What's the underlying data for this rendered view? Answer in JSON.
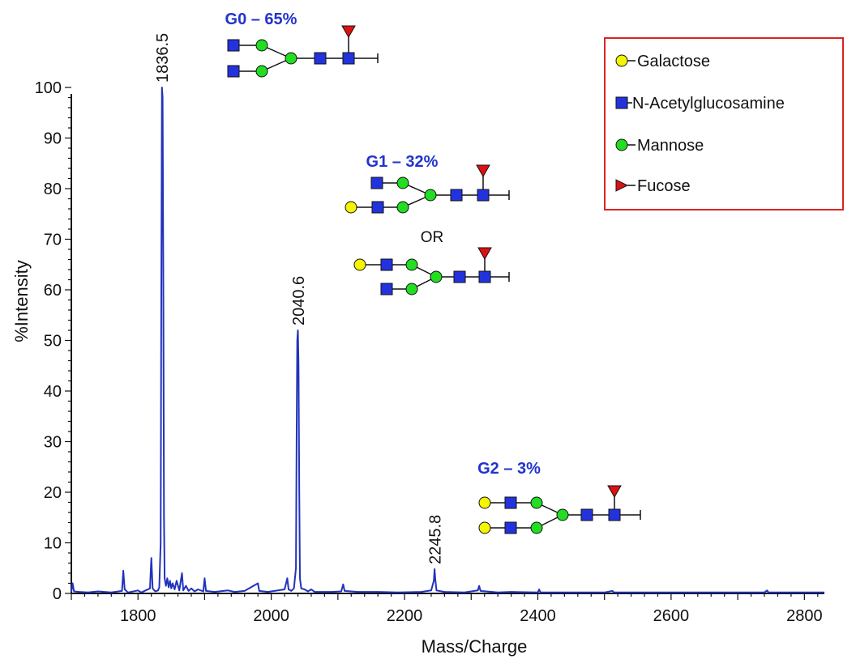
{
  "chart_data": {
    "type": "line",
    "xlabel": "Mass/Charge",
    "ylabel": "%Intensity",
    "xlim": [
      1700,
      2830
    ],
    "ylim": [
      0,
      100
    ],
    "x_ticks": [
      1800,
      2000,
      2200,
      2400,
      2600,
      2800
    ],
    "y_ticks": [
      0,
      10,
      20,
      30,
      40,
      50,
      60,
      70,
      80,
      90,
      100
    ],
    "grid": false,
    "series": [
      {
        "color": "#2233bb",
        "points": [
          [
            1700,
            0.3
          ],
          [
            1702,
            2.0
          ],
          [
            1704,
            0.4
          ],
          [
            1712,
            0.3
          ],
          [
            1725,
            0.2
          ],
          [
            1740,
            0.4
          ],
          [
            1760,
            0.2
          ],
          [
            1776,
            0.5
          ],
          [
            1778,
            4.5
          ],
          [
            1780,
            0.8
          ],
          [
            1785,
            0.2
          ],
          [
            1800,
            0.6
          ],
          [
            1805,
            0.2
          ],
          [
            1818,
            1.0
          ],
          [
            1820,
            7.0
          ],
          [
            1822,
            1.0
          ],
          [
            1826,
            0.4
          ],
          [
            1830,
            0.6
          ],
          [
            1832,
            1.2
          ],
          [
            1834,
            10
          ],
          [
            1835,
            60
          ],
          [
            1836,
            100
          ],
          [
            1837,
            98
          ],
          [
            1838,
            60
          ],
          [
            1839,
            15
          ],
          [
            1840,
            3.0
          ],
          [
            1842,
            1.5
          ],
          [
            1844,
            3.0
          ],
          [
            1846,
            1.2
          ],
          [
            1848,
            2.5
          ],
          [
            1850,
            1.0
          ],
          [
            1852,
            2.0
          ],
          [
            1855,
            0.8
          ],
          [
            1858,
            2.5
          ],
          [
            1862,
            0.6
          ],
          [
            1866,
            4.0
          ],
          [
            1868,
            0.6
          ],
          [
            1872,
            1.5
          ],
          [
            1876,
            0.5
          ],
          [
            1880,
            1.0
          ],
          [
            1885,
            0.4
          ],
          [
            1890,
            0.8
          ],
          [
            1898,
            0.4
          ],
          [
            1900,
            3.0
          ],
          [
            1902,
            0.5
          ],
          [
            1915,
            0.3
          ],
          [
            1935,
            0.6
          ],
          [
            1945,
            0.3
          ],
          [
            1960,
            0.5
          ],
          [
            1980,
            2.0
          ],
          [
            1982,
            0.5
          ],
          [
            1995,
            0.3
          ],
          [
            2020,
            0.8
          ],
          [
            2024,
            3.0
          ],
          [
            2026,
            0.8
          ],
          [
            2030,
            0.5
          ],
          [
            2034,
            1.0
          ],
          [
            2037,
            5
          ],
          [
            2038,
            30
          ],
          [
            2039,
            50
          ],
          [
            2040,
            52
          ],
          [
            2041,
            45
          ],
          [
            2042,
            20
          ],
          [
            2043,
            3.0
          ],
          [
            2045,
            1.0
          ],
          [
            2050,
            0.8
          ],
          [
            2055,
            0.4
          ],
          [
            2060,
            0.8
          ],
          [
            2065,
            0.3
          ],
          [
            2090,
            0.3
          ],
          [
            2105,
            0.4
          ],
          [
            2108,
            1.8
          ],
          [
            2110,
            0.5
          ],
          [
            2130,
            0.3
          ],
          [
            2160,
            0.3
          ],
          [
            2190,
            0.2
          ],
          [
            2225,
            0.3
          ],
          [
            2240,
            0.6
          ],
          [
            2244,
            2.5
          ],
          [
            2245,
            4.8
          ],
          [
            2246,
            3.0
          ],
          [
            2248,
            0.6
          ],
          [
            2260,
            0.3
          ],
          [
            2290,
            0.2
          ],
          [
            2310,
            0.6
          ],
          [
            2312,
            1.5
          ],
          [
            2314,
            0.5
          ],
          [
            2340,
            0.2
          ],
          [
            2360,
            0.3
          ],
          [
            2400,
            0.2
          ],
          [
            2402,
            0.8
          ],
          [
            2404,
            0.2
          ],
          [
            2450,
            0.2
          ],
          [
            2500,
            0.2
          ],
          [
            2512,
            0.5
          ],
          [
            2514,
            0.2
          ],
          [
            2600,
            0.2
          ],
          [
            2650,
            0.2
          ],
          [
            2700,
            0.2
          ],
          [
            2740,
            0.2
          ],
          [
            2744,
            0.6
          ],
          [
            2746,
            0.2
          ],
          [
            2800,
            0.2
          ],
          [
            2830,
            0.2
          ]
        ]
      }
    ],
    "peak_labels": [
      {
        "x": 1836.5,
        "y": 100,
        "text": "1836.5"
      },
      {
        "x": 2040.6,
        "y": 52,
        "text": "2040.6"
      },
      {
        "x": 2245.8,
        "y": 4.8,
        "text": "2245.8"
      }
    ],
    "annotations": {
      "g0": "G0 – 65%",
      "g1": "G1 – 32%",
      "or": "OR",
      "g2": "G2 – 3%"
    },
    "legend": {
      "placement": "top-right",
      "border_color": "#dd2222",
      "items": [
        {
          "label": "Galactose",
          "symbol": "circle",
          "color": "#f5f500"
        },
        {
          "label": "N-Acetylglucosamine",
          "symbol": "square",
          "color": "#2233dd"
        },
        {
          "label": "Mannose",
          "symbol": "circle",
          "color": "#22dd22"
        },
        {
          "label": "Fucose",
          "symbol": "triangle",
          "color": "#dd1111"
        }
      ]
    },
    "colors": {
      "trace": "#2233bb",
      "annotation_text": "#2233cc",
      "galactose": "#f5f500",
      "glcnac": "#2233dd",
      "mannose": "#22dd22",
      "fucose": "#dd1111"
    }
  }
}
